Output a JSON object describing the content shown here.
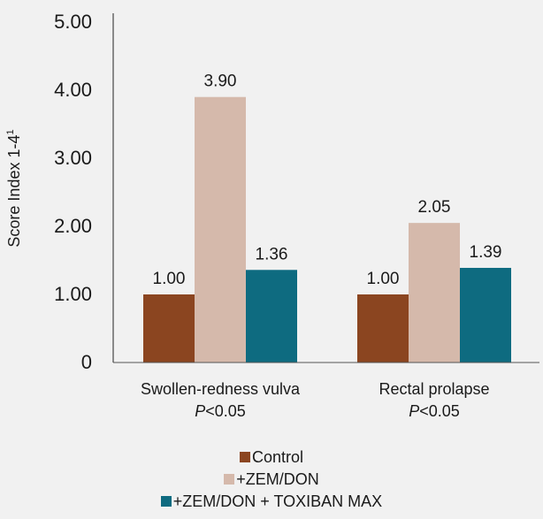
{
  "chart_data": {
    "type": "bar",
    "title": "",
    "ylabel": "Score Index 1-4",
    "ylabel_superscript": "1",
    "xlabel": "",
    "ylim": [
      0,
      5
    ],
    "yticks": [
      0,
      1,
      2,
      3,
      4,
      5
    ],
    "ytick_labels": [
      "0",
      "1.00",
      "2.00",
      "3.00",
      "4.00",
      "5.00"
    ],
    "grid": false,
    "legend_position": "bottom-center",
    "categories": [
      {
        "name": "Swollen-redness vulva",
        "p_prefix": "P",
        "p_value": "<0.05"
      },
      {
        "name": "Rectal prolapse",
        "p_prefix": "P",
        "p_value": "<0.05"
      }
    ],
    "series": [
      {
        "name": "Control",
        "color": "#8b4520",
        "values": [
          1.0,
          1.0
        ],
        "labels": [
          "1.00",
          "1.00"
        ]
      },
      {
        "name": "+ZEM/DON",
        "color": "#d5b9ab",
        "values": [
          3.9,
          2.05
        ],
        "labels": [
          "3.90",
          "2.05"
        ]
      },
      {
        "name": "+ZEM/DON + TOXIBAN MAX",
        "color": "#0e6b80",
        "values": [
          1.36,
          1.39
        ],
        "labels": [
          "1.36",
          "1.39"
        ]
      }
    ]
  }
}
